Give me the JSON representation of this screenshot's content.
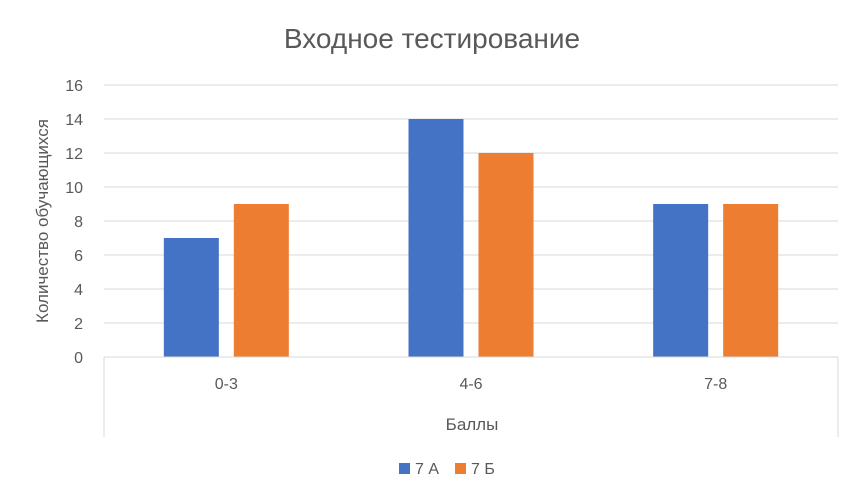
{
  "chart_data": {
    "type": "bar",
    "title": "Входное тестирование",
    "xlabel": "Баллы",
    "ylabel": "Количество обучающихся",
    "categories": [
      "0-3",
      "4-6",
      "7-8"
    ],
    "series": [
      {
        "name": "7 А",
        "values": [
          7,
          14,
          9
        ],
        "color": "#4472C4"
      },
      {
        "name": "7 Б",
        "values": [
          9,
          12,
          9
        ],
        "color": "#ED7D31"
      }
    ],
    "ylim": [
      0,
      16
    ],
    "yticks": [
      "0",
      "2",
      "4",
      "6",
      "8",
      "10",
      "12",
      "14",
      "16"
    ],
    "grid": true,
    "legend_position": "bottom"
  }
}
